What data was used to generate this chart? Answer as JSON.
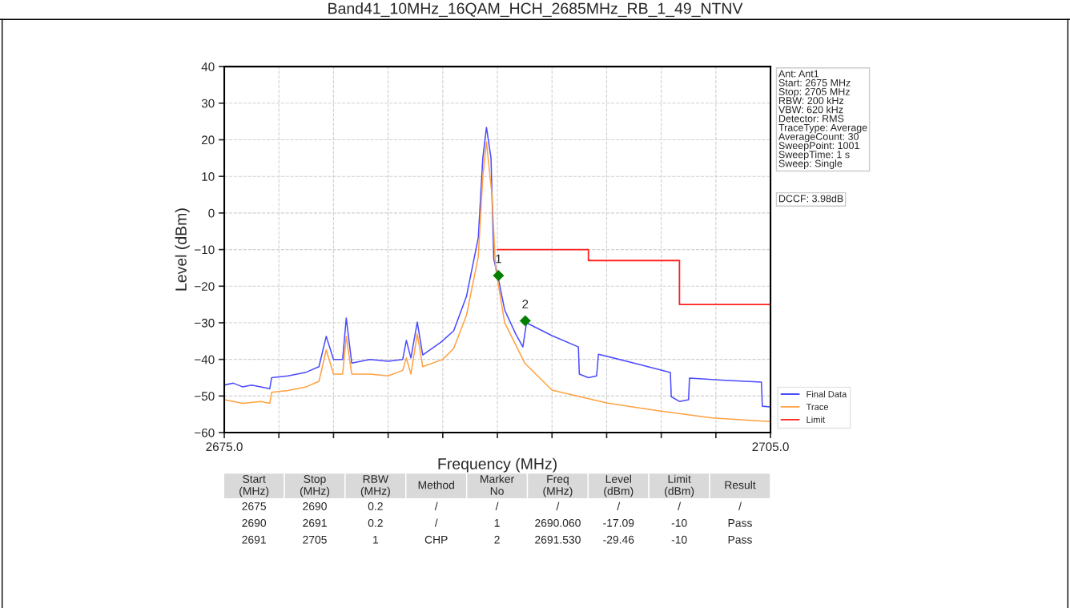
{
  "chart_data": {
    "type": "line",
    "title": "Band41_10MHz_16QAM_HCH_2685MHz_RB_1_49_NTNV",
    "xlabel": "Frequency (MHz)",
    "ylabel": "Level (dBm)",
    "xlim": [
      2675,
      2705
    ],
    "ylim": [
      -60,
      40
    ],
    "xticks": [
      {
        "value": 2675,
        "label": "2675.0"
      },
      {
        "value": 2678,
        "label": null
      },
      {
        "value": 2681,
        "label": null
      },
      {
        "value": 2684,
        "label": null
      },
      {
        "value": 2687,
        "label": null
      },
      {
        "value": 2690,
        "label": null
      },
      {
        "value": 2693,
        "label": null
      },
      {
        "value": 2696,
        "label": null
      },
      {
        "value": 2699,
        "label": null
      },
      {
        "value": 2702,
        "label": null
      },
      {
        "value": 2705,
        "label": "2705.0"
      }
    ],
    "yticks": [
      -60,
      -50,
      -40,
      -30,
      -20,
      -10,
      0,
      10,
      20,
      30,
      40
    ],
    "grid": true,
    "legend": "bottom right",
    "series": [
      {
        "name": "Final Data",
        "color": "#4a4aff",
        "x": [
          2675,
          2675.5,
          2676,
          2676.5,
          2677,
          2677.5,
          2677.6,
          2678.5,
          2679.5,
          2680.2,
          2680.6,
          2681.0,
          2681.5,
          2681.7,
          2682.0,
          2683.0,
          2684.0,
          2684.8,
          2685.0,
          2685.25,
          2685.6,
          2685.9,
          2686.9,
          2687.6,
          2688.3,
          2688.95,
          2689.2,
          2689.4,
          2689.65,
          2689.8,
          2690.05,
          2690.4,
          2691.0,
          2691.4,
          2691.6,
          2693.0,
          2694.45,
          2694.5,
          2695.0,
          2695.45,
          2695.55,
          2697.5,
          2699.5,
          2699.55,
          2700.0,
          2700.5,
          2700.55,
          2702.5,
          2704.5,
          2704.55,
          2705
        ],
        "values": [
          -47,
          -46.5,
          -47.5,
          -47,
          -47.5,
          -48,
          -45,
          -44.5,
          -43.5,
          -42,
          -33.7,
          -40,
          -40,
          -28.7,
          -41,
          -40,
          -40.5,
          -40,
          -34.8,
          -39.6,
          -29.8,
          -38.8,
          -35.3,
          -32.2,
          -22.8,
          -6.8,
          15,
          23.4,
          15,
          -12.5,
          -17.8,
          -26.5,
          -33,
          -36.6,
          -30,
          -33.5,
          -36.6,
          -44,
          -45,
          -44.5,
          -38.6,
          -41,
          -43.6,
          -50.2,
          -51.5,
          -51,
          -45.1,
          -45.7,
          -46.2,
          -52.8,
          -53
        ]
      },
      {
        "name": "Trace",
        "color": "#ffa040",
        "x": [
          2675,
          2676,
          2677,
          2677.5,
          2677.6,
          2678.5,
          2679.5,
          2680.2,
          2680.6,
          2681.0,
          2681.5,
          2681.7,
          2682.0,
          2683.0,
          2684.0,
          2684.8,
          2685.0,
          2685.25,
          2685.6,
          2685.9,
          2687.0,
          2687.6,
          2688.3,
          2688.95,
          2689.2,
          2689.4,
          2689.7,
          2689.9,
          2690.4,
          2691.5,
          2693.0,
          2696.0,
          2698.9,
          2701.8,
          2705
        ],
        "values": [
          -51,
          -52,
          -51.5,
          -52,
          -49,
          -48.5,
          -47.5,
          -46,
          -37.4,
          -44,
          -44,
          -33.7,
          -44,
          -44,
          -44.5,
          -43,
          -39.6,
          -44,
          -33,
          -42,
          -40,
          -37,
          -28,
          -12,
          10,
          19.4,
          5,
          -15,
          -30,
          -41,
          -48.4,
          -51.9,
          -54.1,
          -56,
          -57
        ]
      },
      {
        "name": "Limit",
        "color": "#ff2020",
        "type": "step",
        "x": [
          2690,
          2695,
          2700,
          2705
        ],
        "values": [
          -10,
          -13,
          -25,
          -25
        ]
      },
      {
        "color": "#008000",
        "type": "scatter",
        "marker": "diamond",
        "x": [
          2690.06,
          2691.53
        ],
        "values": [
          -17.09,
          -29.46
        ]
      }
    ],
    "annotations": [
      "Ant: Ant1\nStart: 2675 MHz\nStop: 2705 MHz\nRBW: 200 kHz\nVBW: 620 kHz\nDetector: RMS\nTraceType: Average\nAverageCount: 30\nSweepPoint: 1001\nSweepTime: 1 s\nSweep: Single",
      "DCCF: 3.98dB",
      {
        "text": "1",
        "x": 2690.06,
        "y": -17.09
      },
      {
        "text": "2",
        "x": 2691.53,
        "y": -29.46
      },
      "Start\n(MHz)",
      "Stop\n(MHz)",
      "RBW\n(MHz)",
      "Method",
      "Marker\nNo",
      "Freq\n(MHz)",
      "Level\n(dBm)",
      "Limit\n(dBm)",
      "Result",
      "2675",
      "2690",
      "0.2",
      "/",
      "/",
      "/",
      "/",
      "/",
      "/",
      "2690",
      "2691",
      "0.2",
      "/",
      "1",
      "2690.060",
      "-17.09",
      "-10",
      "Pass",
      "2691",
      "2705",
      "1",
      "CHP",
      "2",
      "2691.530",
      "-29.46",
      "-10",
      "Pass"
    ]
  }
}
